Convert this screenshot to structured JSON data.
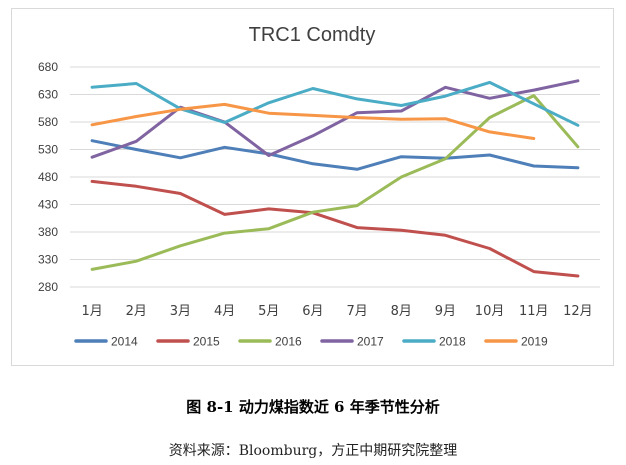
{
  "figure_caption": "图 8-1 动力煤指数近 6 年季节性分析",
  "source_note": "资料来源：Bloomburg，方正中期研究院整理",
  "chart_data": {
    "type": "line",
    "title": "TRC1 Comdty",
    "xlabel": "",
    "ylabel": "",
    "ylim": [
      280,
      680
    ],
    "yticks": [
      280,
      330,
      380,
      430,
      480,
      530,
      580,
      630,
      680
    ],
    "grid": true,
    "legend_position": "bottom",
    "categories": [
      "1月",
      "2月",
      "3月",
      "4月",
      "5月",
      "6月",
      "7月",
      "8月",
      "9月",
      "10月",
      "11月",
      "12月"
    ],
    "series": [
      {
        "name": "2014",
        "color": "#4e7fb8",
        "values": [
          546,
          530,
          515,
          534,
          522,
          504,
          494,
          517,
          514,
          520,
          500,
          497
        ]
      },
      {
        "name": "2015",
        "color": "#c0504d",
        "values": [
          472,
          463,
          450,
          412,
          422,
          415,
          388,
          383,
          374,
          350,
          308,
          300
        ]
      },
      {
        "name": "2016",
        "color": "#9bbb59",
        "values": [
          312,
          327,
          355,
          378,
          386,
          416,
          428,
          480,
          513,
          588,
          628,
          535
        ]
      },
      {
        "name": "2017",
        "color": "#8064a2",
        "values": [
          516,
          545,
          607,
          580,
          519,
          555,
          597,
          600,
          643,
          623,
          638,
          655
        ]
      },
      {
        "name": "2018",
        "color": "#4bacc6",
        "values": [
          643,
          650,
          604,
          579,
          615,
          641,
          622,
          610,
          627,
          652,
          613,
          574
        ]
      },
      {
        "name": "2019",
        "color": "#f79646",
        "values": [
          575,
          590,
          603,
          612,
          596,
          592,
          588,
          585,
          586,
          562,
          550,
          null
        ]
      }
    ]
  }
}
